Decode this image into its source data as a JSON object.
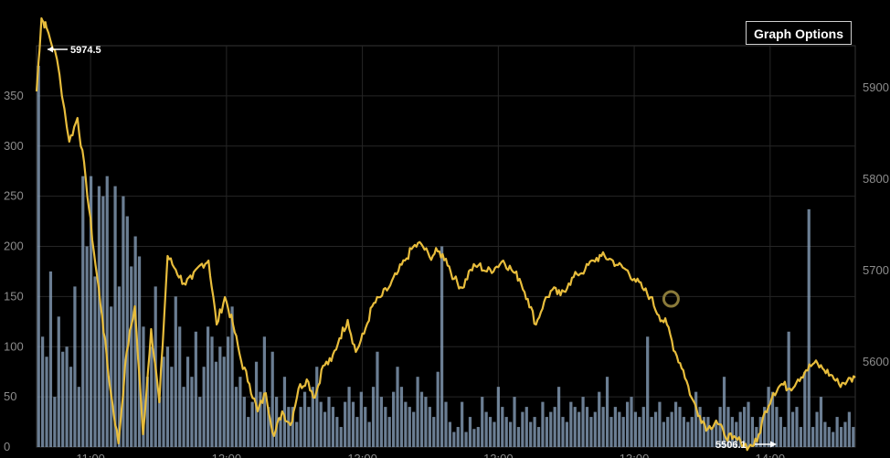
{
  "graph_options_label": "Graph Options",
  "colors": {
    "background": "#000000",
    "grid": "#262626",
    "price_line": "#e8bd3c",
    "volume_bar": "#8fa8c4",
    "axis_text": "#8c8c8c",
    "annotation_text": "#ffffff"
  },
  "chart_data": {
    "type": "line",
    "title": "",
    "xlabel": "",
    "ylabel": "",
    "left_axis": {
      "ticks": [
        0,
        50,
        100,
        150,
        200,
        250,
        300,
        350
      ],
      "ylim": [
        0,
        400
      ]
    },
    "right_axis": {
      "ticks": [
        5600,
        5700,
        5800,
        5900
      ],
      "ylim": [
        5506,
        5945
      ]
    },
    "x_tick_labels": [
      "11:00",
      "12:00",
      "13:00",
      "12:00",
      "13:00",
      "14:00"
    ],
    "high_annotation": {
      "label": "5974.5",
      "value": 5974.5
    },
    "low_annotation": {
      "label": "5506.1",
      "value": 5506.1
    },
    "price_series": {
      "name": "",
      "x": [
        0,
        0.6,
        1.2,
        2.5,
        4,
        5,
        6,
        7,
        8,
        9,
        10,
        11,
        12,
        13,
        14,
        15,
        16,
        17,
        18,
        19,
        20,
        21,
        22,
        23,
        24,
        25,
        26,
        27,
        28,
        29,
        30,
        31,
        32,
        33,
        34,
        35,
        36,
        37,
        38,
        39,
        40,
        41,
        42,
        43,
        44,
        45,
        46,
        47,
        48,
        49,
        50,
        51,
        52,
        53,
        54,
        55,
        56,
        57,
        58,
        59,
        60,
        61,
        62,
        63,
        64,
        65,
        66,
        67,
        68,
        69,
        70,
        71,
        72,
        73,
        74,
        75,
        76,
        77,
        78,
        79,
        80,
        81,
        82,
        83,
        84,
        85,
        86,
        87,
        88,
        89,
        90,
        91,
        92,
        93,
        94,
        95,
        96,
        97,
        98,
        99,
        100
      ],
      "values": [
        5895,
        5975,
        5965,
        5930,
        5840,
        5866,
        5800,
        5720,
        5650,
        5570,
        5510,
        5610,
        5660,
        5520,
        5635,
        5555,
        5715,
        5700,
        5685,
        5690,
        5705,
        5710,
        5640,
        5670,
        5640,
        5600,
        5575,
        5545,
        5565,
        5518,
        5545,
        5530,
        5570,
        5580,
        5560,
        5595,
        5600,
        5625,
        5645,
        5610,
        5630,
        5660,
        5670,
        5680,
        5695,
        5710,
        5725,
        5728,
        5714,
        5720,
        5712,
        5690,
        5680,
        5700,
        5705,
        5698,
        5702,
        5710,
        5700,
        5690,
        5668,
        5640,
        5665,
        5678,
        5672,
        5685,
        5695,
        5700,
        5710,
        5715,
        5712,
        5705,
        5700,
        5690,
        5680,
        5670,
        5650,
        5640,
        5610,
        5590,
        5560,
        5540,
        5526,
        5535,
        5520,
        5515,
        5512,
        5506,
        5512,
        5545,
        5565,
        5575,
        5570,
        5580,
        5590,
        5598,
        5592,
        5585,
        5575,
        5578,
        5582
      ]
    },
    "volume_series": {
      "name": "",
      "values": [
        380,
        110,
        90,
        175,
        50,
        130,
        95,
        100,
        80,
        160,
        60,
        270,
        200,
        270,
        170,
        260,
        250,
        270,
        140,
        260,
        160,
        250,
        230,
        180,
        210,
        190,
        120,
        70,
        100,
        160,
        50,
        90,
        100,
        80,
        150,
        120,
        60,
        90,
        70,
        115,
        50,
        80,
        120,
        110,
        85,
        100,
        90,
        110,
        140,
        60,
        70,
        50,
        30,
        45,
        85,
        55,
        110,
        40,
        95,
        50,
        30,
        70,
        40,
        40,
        25,
        40,
        55,
        40,
        60,
        80,
        45,
        35,
        50,
        40,
        30,
        20,
        45,
        60,
        45,
        30,
        55,
        40,
        25,
        60,
        95,
        50,
        40,
        30,
        55,
        80,
        60,
        45,
        40,
        35,
        70,
        55,
        50,
        40,
        30,
        75,
        200,
        45,
        25,
        15,
        20,
        45,
        15,
        30,
        18,
        20,
        50,
        35,
        30,
        25,
        60,
        40,
        30,
        25,
        50,
        20,
        35,
        40,
        25,
        30,
        20,
        45,
        30,
        35,
        40,
        60,
        30,
        25,
        45,
        40,
        35,
        50,
        40,
        30,
        35,
        55,
        40,
        70,
        30,
        40,
        35,
        30,
        45,
        50,
        35,
        30,
        40,
        110,
        30,
        35,
        45,
        25,
        30,
        35,
        45,
        40,
        30,
        25,
        30,
        55,
        40,
        30,
        30,
        20,
        25,
        40,
        70,
        40,
        30,
        25,
        35,
        40,
        45,
        30,
        20,
        30,
        40,
        60,
        55,
        40,
        30,
        20,
        115,
        35,
        40,
        20,
        75,
        237,
        20,
        35,
        50,
        25,
        20,
        15,
        30,
        20,
        25,
        35,
        20
      ]
    }
  }
}
